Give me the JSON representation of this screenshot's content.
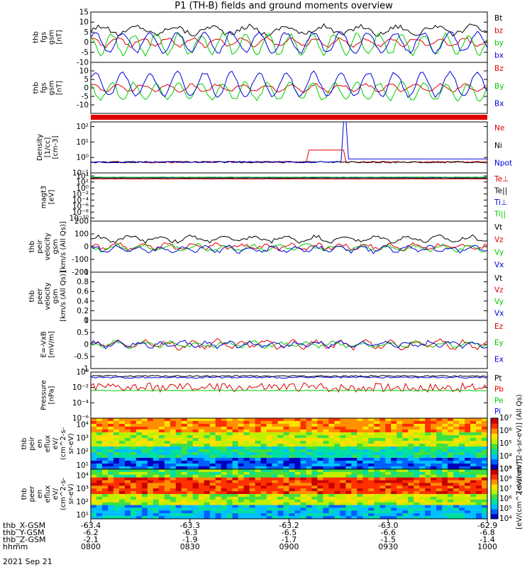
{
  "title": "P1 (TH-B) fields and ground moments overview",
  "date": "2021 Sep 21",
  "colors": {
    "black": "#000000",
    "red": "#e00000",
    "green": "#00cc00",
    "blue": "#0000e0"
  },
  "chart_data": [
    {
      "type": "line",
      "panel": "fgs-gsm",
      "ylabel": [
        "thb",
        "fgs",
        "gsm",
        "[nT]"
      ],
      "ylim": [
        -10,
        15
      ],
      "yticks": [
        -10,
        -5,
        0,
        5,
        10,
        15
      ],
      "series": [
        {
          "name": "Bt",
          "color": "black",
          "level": 6,
          "amp": 2,
          "period": 30,
          "phase": 0,
          "noise": 1.2
        },
        {
          "name": "bz",
          "color": "red",
          "level": 0,
          "amp": 2,
          "period": 20,
          "phase": 1,
          "noise": 0.8
        },
        {
          "name": "by",
          "color": "green",
          "level": -1,
          "amp": 5,
          "period": 18,
          "phase": 2,
          "noise": 1
        },
        {
          "name": "bx",
          "color": "blue",
          "level": 0,
          "amp": 5,
          "period": 22,
          "phase": 0.5,
          "noise": 1
        }
      ]
    },
    {
      "type": "line",
      "panel": "fgs-gsm-2",
      "ylabel": [
        "thb",
        "fgs",
        "gsm",
        "[nT]"
      ],
      "ylim": [
        -15,
        15
      ],
      "yticks": [
        -10,
        -5,
        0,
        5,
        10
      ],
      "series": [
        {
          "name": "Bz",
          "color": "red",
          "level": 0,
          "amp": 2,
          "period": 20,
          "phase": 1,
          "noise": 0.8
        },
        {
          "name": "By",
          "color": "green",
          "level": -2,
          "amp": 5,
          "period": 18,
          "phase": 2,
          "noise": 1
        },
        {
          "name": "Bx",
          "color": "blue",
          "level": 2,
          "amp": 7,
          "period": 22,
          "phase": 0.5,
          "noise": 1
        }
      ]
    },
    {
      "type": "line",
      "panel": "density",
      "ylabel": [
        "Density",
        "[1/cc]",
        "[cm-3]"
      ],
      "scale": "log",
      "ylim": [
        0.1,
        200
      ],
      "yticks": [
        0.1,
        1,
        10,
        100
      ],
      "series": [
        {
          "name": "Ne",
          "color": "red",
          "level": 0.5,
          "amp": 0,
          "period": 10,
          "phase": 0,
          "noise": 0.05,
          "ramp": [
            55,
            64,
            3
          ]
        },
        {
          "name": "Ni",
          "color": "black",
          "level": 0.5,
          "amp": 0,
          "period": 10,
          "phase": 0,
          "noise": 0.05
        },
        {
          "name": "Npot",
          "color": "blue",
          "level": 0.5,
          "amp": 0,
          "period": 10,
          "phase": 0,
          "noise": 0.05,
          "spike": [
            64,
            200
          ],
          "after": [
            64,
            0.8
          ]
        }
      ]
    },
    {
      "type": "line",
      "panel": "temperature",
      "ylabel": [
        "magt3",
        "[eV]"
      ],
      "scale": "log",
      "ylim": [
        1e-11,
        100000.0
      ],
      "yticks": [
        10000.0,
        100.0,
        1.0,
        0.01,
        0.0001,
        1e-06,
        1e-08,
        1e-10
      ],
      "series": [
        {
          "name": "Te⊥",
          "color": "red",
          "level": 1000,
          "amp": 0,
          "period": 10,
          "phase": 0,
          "noise": 0.05
        },
        {
          "name": "Te||",
          "color": "black",
          "level": 2000,
          "amp": 0,
          "period": 10,
          "phase": 0,
          "noise": 0.05
        },
        {
          "name": "Ti⊥",
          "color": "blue",
          "level": 3000,
          "amp": 0,
          "period": 10,
          "phase": 0,
          "noise": 0.05
        },
        {
          "name": "Ti||",
          "color": "green",
          "level": 4000,
          "amp": 0,
          "period": 10,
          "phase": 0,
          "noise": 0.05
        }
      ]
    },
    {
      "type": "line",
      "panel": "peir-velocity",
      "ylabel": [
        "thb",
        "peir",
        "velocity",
        "gsm",
        "[km/s (All Qs)]"
      ],
      "ylim": [
        -200,
        200
      ],
      "yticks": [
        -200,
        -100,
        0,
        100,
        200
      ],
      "series": [
        {
          "name": "Vt",
          "color": "black",
          "level": 60,
          "amp": 20,
          "period": 25,
          "phase": 0,
          "noise": 15
        },
        {
          "name": "Vz",
          "color": "red",
          "level": 0,
          "amp": 20,
          "period": 20,
          "phase": 1,
          "noise": 15
        },
        {
          "name": "Vy",
          "color": "green",
          "level": -10,
          "amp": 20,
          "period": 22,
          "phase": 2,
          "noise": 15
        },
        {
          "name": "Vx",
          "color": "blue",
          "level": -20,
          "amp": 20,
          "period": 18,
          "phase": 0.5,
          "noise": 15
        }
      ]
    },
    {
      "type": "line",
      "panel": "peer-velocity",
      "ylabel": [
        "thb",
        "peer",
        "velocity",
        "gsm",
        "[km/s (All Qs)]"
      ],
      "ylim": [
        0,
        1
      ],
      "yticks": [
        0,
        0.2,
        0.4,
        0.6,
        0.8,
        1.0
      ],
      "series": [
        {
          "name": "Vt",
          "color": "black"
        },
        {
          "name": "Vz",
          "color": "red"
        },
        {
          "name": "Vy",
          "color": "green"
        },
        {
          "name": "Vx",
          "color": "blue"
        }
      ]
    },
    {
      "type": "line",
      "panel": "efield",
      "ylabel": [
        "E=-VxB",
        "[mV/m]"
      ],
      "ylim": [
        -1,
        1
      ],
      "yticks": [
        -1.0,
        -0.5,
        0.0,
        0.5,
        1.0
      ],
      "series": [
        {
          "name": "Ez",
          "color": "red",
          "level": 0,
          "amp": 0.15,
          "period": 20,
          "phase": 1,
          "noise": 0.1
        },
        {
          "name": "Ey",
          "color": "green",
          "level": 0,
          "amp": 0.1,
          "period": 22,
          "phase": 2,
          "noise": 0.08
        },
        {
          "name": "Ex",
          "color": "blue",
          "level": 0,
          "amp": 0.1,
          "period": 18,
          "phase": 0.5,
          "noise": 0.08
        }
      ]
    },
    {
      "type": "line",
      "panel": "pressure",
      "ylabel": [
        "Pressure",
        "[nPa]"
      ],
      "scale": "log",
      "ylim": [
        1e-06,
        1
      ],
      "yticks": [
        1.0,
        0.01,
        0.0001,
        1e-06
      ],
      "series": [
        {
          "name": "Pt",
          "color": "black",
          "level": 0.3,
          "amp": 0,
          "period": 10,
          "phase": 0,
          "noise": 0.1
        },
        {
          "name": "Pb",
          "color": "red",
          "level": 0.01,
          "amp": 0,
          "period": 10,
          "phase": 0,
          "noise": 0.6
        },
        {
          "name": "Pe",
          "color": "green",
          "level": 0.004,
          "amp": 0,
          "period": 10,
          "phase": 0,
          "noise": 0.05
        },
        {
          "name": "Pi",
          "color": "blue",
          "level": 0.2,
          "amp": 0,
          "period": 10,
          "phase": 0,
          "noise": 0.1
        }
      ]
    },
    {
      "type": "heatmap",
      "panel": "peir-eflux",
      "ylabel": [
        "thb",
        "peir",
        "en",
        "eflux",
        "eV/",
        "(cm^2-s-",
        "sr-eV)"
      ],
      "scale": "log",
      "ylim": [
        5,
        30000
      ],
      "yticks": [
        10,
        100,
        1000,
        10000
      ],
      "colorbar": {
        "min": 1000.0,
        "max": 10000000.0,
        "label": "[eV/(cm^2-s-sr-eV)] (All Qs)"
      }
    },
    {
      "type": "heatmap",
      "panel": "peer-eflux",
      "ylabel": [
        "thb",
        "peer",
        "en",
        "eflux",
        "eV/",
        "(cm^2-s-",
        "sr-eV)"
      ],
      "scale": "log",
      "ylim": [
        5,
        30000
      ],
      "yticks": [
        10,
        100,
        1000,
        10000
      ],
      "colorbar": {
        "min": 10000.0,
        "max": 1000000000.0,
        "label": "[eV/(cm^2-s-sr-eV)]"
      }
    }
  ],
  "x_axis": {
    "rows": [
      {
        "label": "thb_X-GSM",
        "values": [
          "-63.4",
          "-63.3",
          "-63.2",
          "-63.0",
          "-62.9"
        ]
      },
      {
        "label": "thb_Y-GSM",
        "values": [
          "-6.2",
          "-6.3",
          "-6.5",
          "-6.6",
          "-6.8"
        ]
      },
      {
        "label": "thb_Z-GSM",
        "values": [
          "-2.1",
          "-1.9",
          "-1.7",
          "-1.5",
          "-1.4"
        ]
      },
      {
        "label": "hhmm",
        "values": [
          "0800",
          "0830",
          "0900",
          "0930",
          "1000"
        ]
      }
    ]
  }
}
